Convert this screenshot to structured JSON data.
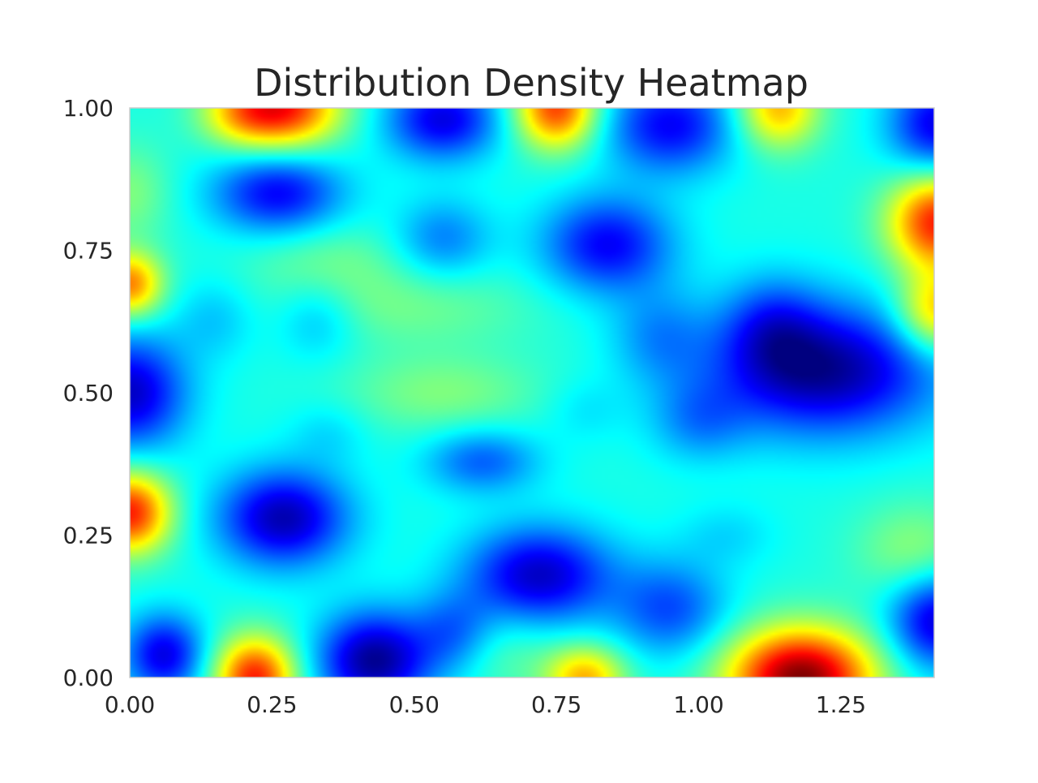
{
  "chart_data": {
    "type": "heatmap",
    "title": "Distribution Density Heatmap",
    "xlabel": "",
    "ylabel": "",
    "xlim": [
      0.0,
      1.414
    ],
    "ylim": [
      0.0,
      1.0
    ],
    "x_ticks": [
      {
        "value": 0.0,
        "label": "0.00"
      },
      {
        "value": 0.25,
        "label": "0.25"
      },
      {
        "value": 0.5,
        "label": "0.50"
      },
      {
        "value": 0.75,
        "label": "0.75"
      },
      {
        "value": 1.0,
        "label": "1.00"
      },
      {
        "value": 1.25,
        "label": "1.25"
      }
    ],
    "y_ticks": [
      {
        "value": 0.0,
        "label": "0.00"
      },
      {
        "value": 0.25,
        "label": "0.25"
      },
      {
        "value": 0.5,
        "label": "0.50"
      },
      {
        "value": 0.75,
        "label": "0.75"
      },
      {
        "value": 1.0,
        "label": "1.00"
      }
    ],
    "colormap": "jet",
    "background_level": 0.4,
    "grid": false,
    "frame_color": "#cccccc",
    "colormap_stops": [
      "#00007f",
      "#0000ff",
      "#007fff",
      "#00ffff",
      "#7fff7f",
      "#ffff00",
      "#ff7f00",
      "#ff0000",
      "#7f0000"
    ],
    "features": [
      {
        "x": 0.27,
        "y": 1.0,
        "sx": 0.07,
        "sy": 0.05,
        "amp": 0.45
      },
      {
        "x": 0.19,
        "y": 0.99,
        "sx": 0.05,
        "sy": 0.04,
        "amp": 0.15
      },
      {
        "x": 0.75,
        "y": 1.0,
        "sx": 0.05,
        "sy": 0.05,
        "amp": 0.42
      },
      {
        "x": 1.14,
        "y": 1.0,
        "sx": 0.05,
        "sy": 0.05,
        "amp": 0.3
      },
      {
        "x": 1.42,
        "y": 0.8,
        "sx": 0.06,
        "sy": 0.06,
        "amp": 0.45
      },
      {
        "x": 1.42,
        "y": 0.64,
        "sx": 0.05,
        "sy": 0.05,
        "amp": 0.3
      },
      {
        "x": 0.0,
        "y": 0.69,
        "sx": 0.04,
        "sy": 0.04,
        "amp": 0.35
      },
      {
        "x": 0.0,
        "y": 0.29,
        "sx": 0.05,
        "sy": 0.05,
        "amp": 0.45
      },
      {
        "x": 0.22,
        "y": 0.0,
        "sx": 0.05,
        "sy": 0.05,
        "amp": 0.45
      },
      {
        "x": 0.8,
        "y": 0.0,
        "sx": 0.05,
        "sy": 0.04,
        "amp": 0.3
      },
      {
        "x": 1.18,
        "y": 0.0,
        "sx": 0.09,
        "sy": 0.06,
        "amp": 0.6
      },
      {
        "x": 0.0,
        "y": 0.85,
        "sx": 0.05,
        "sy": 0.06,
        "amp": 0.1
      },
      {
        "x": 0.55,
        "y": 0.5,
        "sx": 0.12,
        "sy": 0.05,
        "amp": 0.1
      },
      {
        "x": 0.5,
        "y": 0.65,
        "sx": 0.15,
        "sy": 0.05,
        "amp": 0.08
      },
      {
        "x": 0.35,
        "y": 0.73,
        "sx": 0.1,
        "sy": 0.05,
        "amp": 0.08
      },
      {
        "x": 1.38,
        "y": 0.22,
        "sx": 0.07,
        "sy": 0.06,
        "amp": 0.12
      },
      {
        "x": 0.66,
        "y": 0.04,
        "sx": 0.06,
        "sy": 0.05,
        "amp": 0.06
      },
      {
        "x": 0.0,
        "y": 0.5,
        "sx": 0.07,
        "sy": 0.07,
        "amp": -0.33
      },
      {
        "x": 1.22,
        "y": 0.54,
        "sx": 0.14,
        "sy": 0.08,
        "amp": -0.38
      },
      {
        "x": 1.13,
        "y": 0.62,
        "sx": 0.06,
        "sy": 0.06,
        "amp": -0.15
      },
      {
        "x": 1.0,
        "y": 0.45,
        "sx": 0.06,
        "sy": 0.05,
        "amp": -0.12
      },
      {
        "x": 0.84,
        "y": 0.76,
        "sx": 0.08,
        "sy": 0.06,
        "amp": -0.28
      },
      {
        "x": 0.26,
        "y": 0.85,
        "sx": 0.08,
        "sy": 0.05,
        "amp": -0.28
      },
      {
        "x": 0.55,
        "y": 0.98,
        "sx": 0.07,
        "sy": 0.05,
        "amp": -0.3
      },
      {
        "x": 0.95,
        "y": 0.97,
        "sx": 0.08,
        "sy": 0.06,
        "amp": -0.28
      },
      {
        "x": 1.42,
        "y": 0.97,
        "sx": 0.06,
        "sy": 0.06,
        "amp": -0.3
      },
      {
        "x": 0.27,
        "y": 0.28,
        "sx": 0.08,
        "sy": 0.06,
        "amp": -0.35
      },
      {
        "x": 0.72,
        "y": 0.18,
        "sx": 0.09,
        "sy": 0.06,
        "amp": -0.33
      },
      {
        "x": 0.43,
        "y": 0.03,
        "sx": 0.07,
        "sy": 0.06,
        "amp": -0.38
      },
      {
        "x": 0.57,
        "y": 0.08,
        "sx": 0.05,
        "sy": 0.05,
        "amp": -0.15
      },
      {
        "x": 0.06,
        "y": 0.04,
        "sx": 0.05,
        "sy": 0.05,
        "amp": -0.3
      },
      {
        "x": 0.95,
        "y": 0.12,
        "sx": 0.07,
        "sy": 0.06,
        "amp": -0.2
      },
      {
        "x": 1.42,
        "y": 0.1,
        "sx": 0.06,
        "sy": 0.06,
        "amp": -0.32
      },
      {
        "x": 0.62,
        "y": 0.38,
        "sx": 0.07,
        "sy": 0.04,
        "amp": -0.18
      },
      {
        "x": 0.55,
        "y": 0.77,
        "sx": 0.06,
        "sy": 0.05,
        "amp": -0.15
      },
      {
        "x": 0.33,
        "y": 0.63,
        "sx": 0.05,
        "sy": 0.05,
        "amp": -0.1
      },
      {
        "x": 0.15,
        "y": 0.63,
        "sx": 0.05,
        "sy": 0.05,
        "amp": -0.08
      },
      {
        "x": 0.35,
        "y": 0.43,
        "sx": 0.05,
        "sy": 0.04,
        "amp": -0.06
      },
      {
        "x": 0.8,
        "y": 0.47,
        "sx": 0.05,
        "sy": 0.04,
        "amp": -0.05
      },
      {
        "x": 1.05,
        "y": 0.25,
        "sx": 0.06,
        "sy": 0.04,
        "amp": -0.06
      },
      {
        "x": 0.93,
        "y": 0.6,
        "sx": 0.06,
        "sy": 0.06,
        "amp": -0.12
      }
    ]
  }
}
